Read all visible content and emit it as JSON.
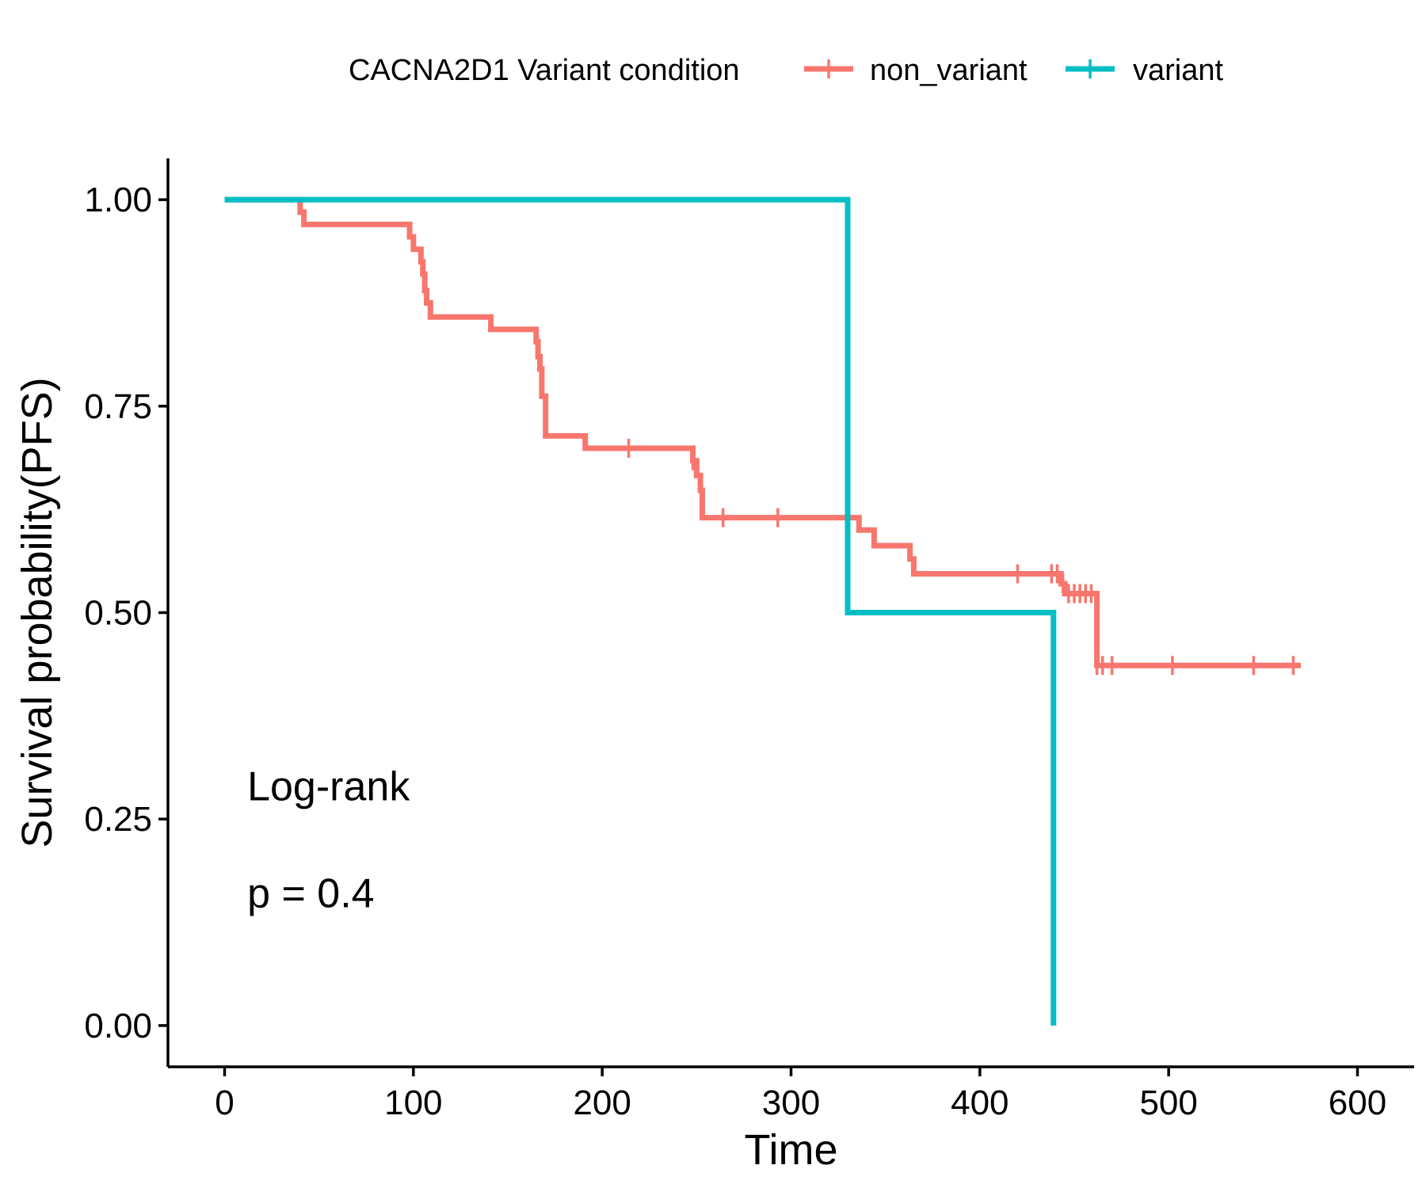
{
  "chart_data": {
    "type": "line",
    "subtype": "kaplan-meier step",
    "xlabel": "Time",
    "ylabel": "Survival probability(PFS)",
    "xlim": [
      -30,
      630
    ],
    "ylim": [
      -0.05,
      1.05
    ],
    "x_ticks": [
      0,
      100,
      200,
      300,
      400,
      500,
      600
    ],
    "x_tick_labels": [
      "0",
      "100",
      "200",
      "300",
      "400",
      "500",
      "600"
    ],
    "y_ticks": [
      0,
      0.25,
      0.5,
      0.75,
      1.0
    ],
    "y_tick_labels": [
      "0.00",
      "0.25",
      "0.50",
      "0.75",
      "1.00"
    ],
    "grid": false,
    "legend": {
      "title": "CACNA2D1 Variant condition",
      "placement": "top"
    },
    "annotation": {
      "line1": "Log-rank",
      "line2": "p = 0.4",
      "anchor": [
        12,
        0.29
      ]
    },
    "series": [
      {
        "name": "non_variant",
        "color": "#F8766D",
        "steps": [
          [
            0,
            1.0
          ],
          [
            40,
            0.985
          ],
          [
            42,
            0.97
          ],
          [
            98,
            0.955
          ],
          [
            100,
            0.94
          ],
          [
            104,
            0.925
          ],
          [
            105,
            0.91
          ],
          [
            106,
            0.89
          ],
          [
            107,
            0.875
          ],
          [
            109,
            0.858
          ],
          [
            141,
            0.843
          ],
          [
            165,
            0.828
          ],
          [
            166,
            0.81
          ],
          [
            167,
            0.795
          ],
          [
            168,
            0.762
          ],
          [
            170,
            0.714
          ],
          [
            191,
            0.699
          ],
          [
            248,
            0.684
          ],
          [
            250,
            0.666
          ],
          [
            252,
            0.648
          ],
          [
            253,
            0.615
          ],
          [
            336,
            0.6
          ],
          [
            344,
            0.581
          ],
          [
            363,
            0.565
          ],
          [
            365,
            0.547
          ],
          [
            443,
            0.535
          ],
          [
            445,
            0.523
          ],
          [
            462,
            0.436
          ]
        ],
        "end_x": 570,
        "censor_x": [
          214,
          248,
          264,
          293,
          420,
          438,
          441,
          444,
          447,
          450,
          453,
          456,
          459,
          462,
          465,
          470,
          502,
          545,
          566
        ]
      },
      {
        "name": "variant",
        "color": "#00BFC4",
        "steps": [
          [
            0,
            1.0
          ],
          [
            330,
            0.5
          ],
          [
            439,
            0.0
          ]
        ],
        "end_x": 439,
        "censor_x": []
      }
    ]
  }
}
